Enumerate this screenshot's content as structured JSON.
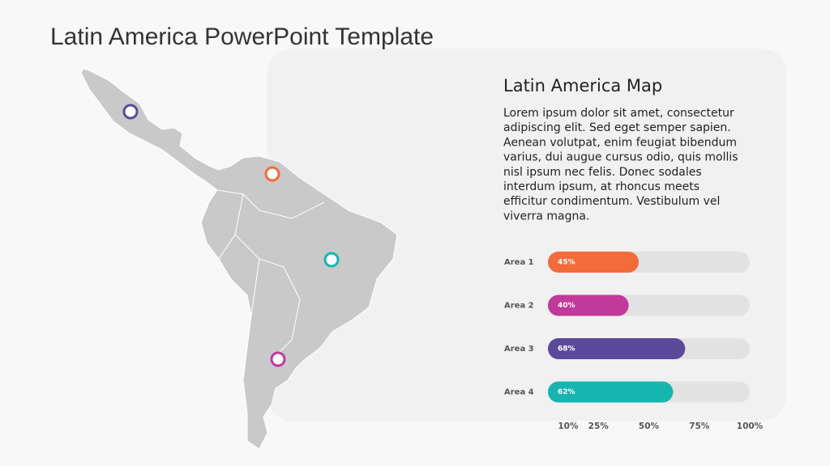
{
  "header": {
    "title": "Latin America PowerPoint Template"
  },
  "text": {
    "heading": "Latin America Map",
    "lines": [
      "Lorem ipsum dolor sit amet, consectetur",
      "adipiscing elit. Sed eget semper sapien.",
      "Aenean volutpat, enim feugiat bibendum",
      "varius, dui augue cursus odio, quis mollis",
      "nisl ipsum nec felis. Donec sodales",
      "interdum ipsum, at rhoncus meets",
      "efficitur condimentum. Vestibulum vel",
      "viverra magna."
    ]
  },
  "chart_data": {
    "type": "bar",
    "orientation": "horizontal",
    "categories": [
      "Area 1",
      "Area 2",
      "Area 3",
      "Area 4"
    ],
    "values": [
      45,
      40,
      68,
      62
    ],
    "value_labels": [
      "45%",
      "40%",
      "68%",
      "62%"
    ],
    "colors": [
      "#f26b3a",
      "#c0399b",
      "#5b4a9b",
      "#16b5b0"
    ],
    "track_color": "#e2e2e2",
    "xlim": [
      0,
      100
    ],
    "xticks": [
      {
        "value": 10,
        "label": "10%"
      },
      {
        "value": 25,
        "label": "25%"
      },
      {
        "value": 50,
        "label": "50%"
      },
      {
        "value": 75,
        "label": "75%"
      },
      {
        "value": 100,
        "label": "100%"
      }
    ]
  }
}
